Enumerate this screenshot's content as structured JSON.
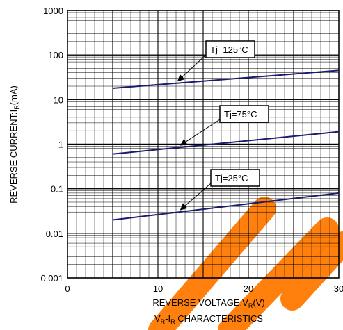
{
  "chart_data": {
    "type": "line",
    "xlabel_main": "REVERSE VOLTAGE",
    "xlabel_sym": ":V",
    "xlabel_sub": "R",
    "xlabel_unit": "(V)",
    "ylabel_main": "REVERSE CURRENT",
    "ylabel_sym": ":I",
    "ylabel_sub": "R",
    "ylabel_unit": "(mA)",
    "caption_v": "V",
    "caption_v_sub": "R",
    "caption_dash": "-I",
    "caption_i_sub": "R",
    "caption_rest": " CHARACTERISTICS",
    "xlim": [
      0,
      30
    ],
    "ylim": [
      0.001,
      1000
    ],
    "yscale": "log",
    "grid": true,
    "x_ticks": [
      "0",
      "10",
      "20",
      "30"
    ],
    "y_ticks": [
      "0.001",
      "0.01",
      "0.1",
      "1",
      "10",
      "100",
      "1000"
    ],
    "series": [
      {
        "name": "Tj=125°C",
        "x": [
          5,
          30
        ],
        "y": [
          18,
          45
        ]
      },
      {
        "name": "Tj=75°C",
        "x": [
          5,
          30
        ],
        "y": [
          0.6,
          1.9
        ]
      },
      {
        "name": "Tj=25°C",
        "x": [
          5,
          30
        ],
        "y": [
          0.02,
          0.08
        ]
      }
    ],
    "series_color": "#1a1a6e",
    "watermark_color": "#ff7a00"
  }
}
